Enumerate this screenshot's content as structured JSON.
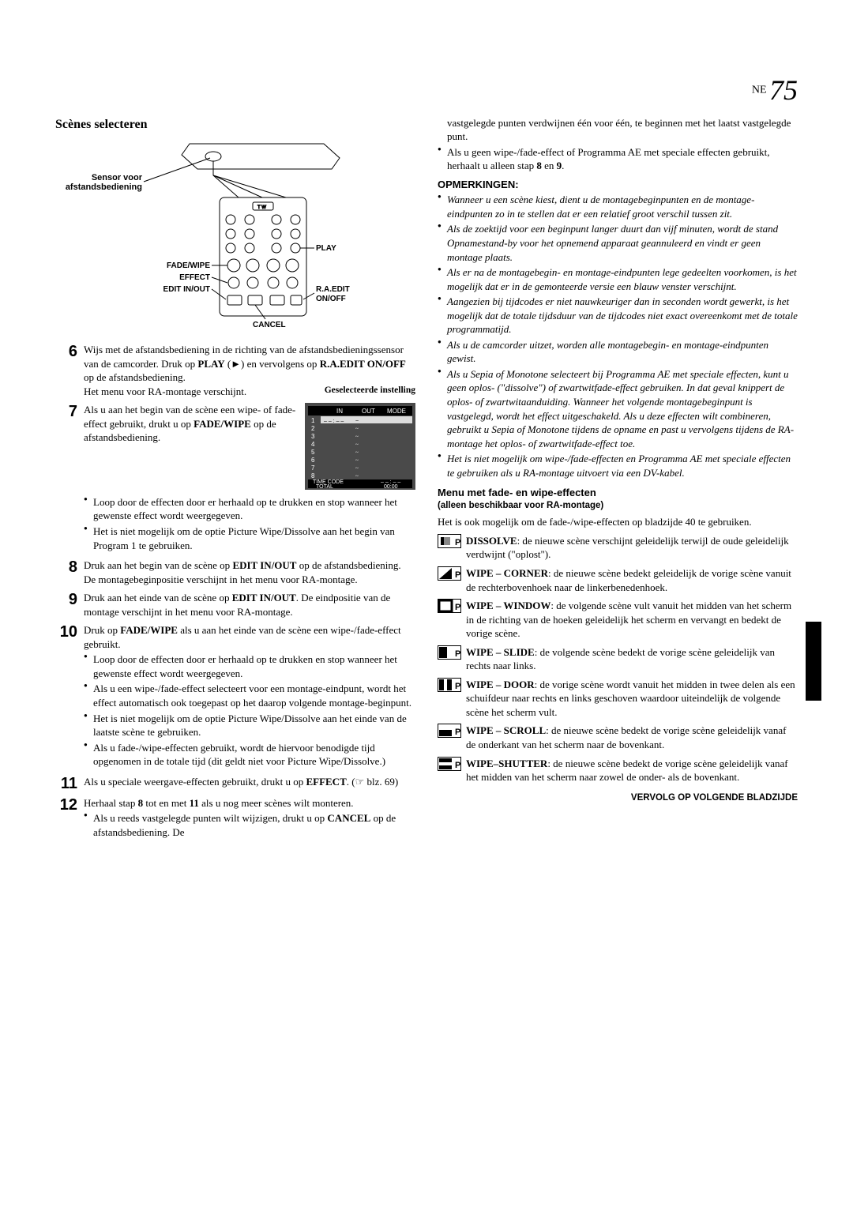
{
  "page": {
    "prefix": "NE",
    "number": "75"
  },
  "left": {
    "section_title": "Scènes selecteren",
    "diagram_labels": {
      "sensor": "Sensor voor",
      "afstand": "afstandsbediening",
      "fade_wipe": "FADE/WIPE",
      "effect": "EFFECT",
      "edit_inout": "EDIT IN/OUT",
      "play": "PLAY",
      "raedit": "R.A.EDIT",
      "onoff": "ON/OFF",
      "cancel": "CANCEL"
    },
    "step6": {
      "p1": "Wijs met de afstandsbediening in de richting van de afstandsbedieningssensor van de camcorder. Druk op ",
      "b1": "PLAY",
      "p2": " (►) en vervolgens op ",
      "b2": "R.A.EDIT ON/OFF",
      "p3": " op de afstandsbediening.",
      "p4": "Het menu voor RA-montage verschijnt."
    },
    "gesel_caption": "Geselecteerde instelling",
    "screen": {
      "in": "IN",
      "out": "OUT",
      "mode": "MODE",
      "time_code": "TIME CODE",
      "tc_dashes": "– – : – –",
      "total": "TOTAL",
      "total_val": "00:00"
    },
    "step7": {
      "p1": "Als u aan het begin van de scène een wipe- of fade-effect gebruikt, drukt u op ",
      "b1": "FADE/WIPE",
      "p2": " op de afstandsbediening.",
      "bul1": "Loop door de effecten door er herhaald op te drukken en stop wanneer het gewenste effect wordt weergegeven.",
      "bul2": "Het is niet mogelijk om de optie Picture Wipe/Dissolve aan het begin van Program 1 te gebruiken."
    },
    "step8": {
      "p1": "Druk aan het begin van de scène op ",
      "b1": "EDIT IN/OUT",
      "p2": " op de afstandsbediening. De montagebeginpositie verschijnt in het menu voor RA-montage."
    },
    "step9": {
      "p1": "Druk aan het einde van de scène op ",
      "b1": "EDIT IN/OUT",
      "p2": ". De eindpositie van de montage verschijnt in het menu voor RA-montage."
    },
    "step10": {
      "p1": "Druk op ",
      "b1": "FADE/WIPE",
      "p2": " als u aan het einde van de scène een wipe-/fade-effect gebruikt.",
      "bul1": "Loop door de effecten door er herhaald op te drukken en stop wanneer het gewenste effect wordt weergegeven.",
      "bul2": "Als u een wipe-/fade-effect selecteert voor een montage-eindpunt, wordt het effect automatisch ook toegepast op het daarop volgende montage-beginpunt.",
      "bul3": "Het is niet mogelijk om de optie Picture Wipe/Dissolve aan het einde van de laatste scène te gebruiken.",
      "bul4": "Als u fade-/wipe-effecten gebruikt, wordt de hiervoor benodigde tijd opgenomen in de totale tijd (dit geldt niet voor Picture Wipe/Dissolve.)"
    },
    "step11": {
      "p1": "Als u speciale weergave-effecten gebruikt, drukt u op ",
      "b1": "EFFECT",
      "p2": ". (☞ blz. 69)"
    },
    "step12": {
      "p1": "Herhaal stap ",
      "b1": "8",
      "p2": " tot en met ",
      "b2": "11",
      "p3": " als u nog meer scènes wilt monteren.",
      "bul1_a": "Als u reeds vastgelegde punten wilt wijzigen, drukt u op ",
      "bul1_b": "CANCEL",
      "bul1_c": " op de afstandsbediening. De"
    }
  },
  "right": {
    "top_cont": "vastgelegde punten verdwijnen één voor één, te beginnen met het laatst vastgelegde punt.",
    "top_bul_a": "Als u geen wipe-/fade-effect of Programma AE met speciale effecten gebruikt, herhaalt u alleen stap ",
    "top_b1": "8",
    "top_bul_b": " en ",
    "top_b2": "9",
    "top_bul_c": ".",
    "opmerkingen": "OPMERKINGEN:",
    "notes": [
      "Wanneer u een scène kiest, dient u de montagebeginpunten en de montage-eindpunten zo in te stellen dat er een relatief groot verschil tussen zit.",
      "Als de zoektijd voor een beginpunt langer duurt dan vijf minuten, wordt de stand Opnamestand-by voor het opnemend apparaat geannuleerd en vindt er geen montage plaats.",
      "Als er na de montagebegin- en montage-eindpunten lege gedeelten voorkomen, is het mogelijk dat er in de gemonteerde versie een blauw venster verschijnt.",
      "Aangezien bij tijdcodes er niet nauwkeuriger dan in seconden wordt gewerkt, is het mogelijk dat de totale tijdsduur van de tijdcodes niet exact overeenkomt met de totale programmatijd.",
      "Als u de camcorder uitzet, worden alle montagebegin- en montage-eindpunten gewist.",
      "Als u Sepia of Monotone selecteert bij Programma AE met speciale effecten, kunt u geen oplos- (\"dissolve\") of zwartwitfade-effect gebruiken. In dat geval knippert de oplos- of zwartwitaanduiding. Wanneer het volgende montagebeginpunt is vastgelegd, wordt het effect uitgeschakeld. Als u deze effecten wilt combineren, gebruikt u Sepia of Monotone tijdens de opname en past u vervolgens tijdens de RA-montage het oplos- of zwartwitfade-effect toe.",
      "Het is niet mogelijk om wipe-/fade-effecten en Programma AE met speciale effecten te gebruiken als u RA-montage uitvoert via een DV-kabel."
    ],
    "menu_title": "Menu met fade- en wipe-effecten",
    "menu_sub": "(alleen beschikbaar voor RA-montage)",
    "menu_intro": "Het is ook mogelijk om de fade-/wipe-effecten op bladzijde 40 te gebruiken.",
    "effects": [
      {
        "name": "DISSOLVE",
        "text": ": de nieuwe scène verschijnt geleidelijk terwijl de oude geleidelijk verdwijnt (\"oplost\")."
      },
      {
        "name": "WIPE – CORNER",
        "text": ": de nieuwe scène bedekt geleidelijk de vorige scène vanuit de rechterbovenhoek naar de linkerbenedenhoek."
      },
      {
        "name": "WIPE – WINDOW",
        "text": ": de volgende scène vult vanuit het midden van het scherm in de richting van de hoeken geleidelijk het scherm en vervangt en bedekt de vorige scène."
      },
      {
        "name": "WIPE – SLIDE",
        "text": ": de volgende scène bedekt de vorige scène geleidelijk van rechts naar links."
      },
      {
        "name": "WIPE – DOOR",
        "text": ": de vorige scène wordt vanuit het midden in twee delen als een schuifdeur naar rechts en links geschoven waardoor uiteindelijk de volgende scène het scherm vult."
      },
      {
        "name": "WIPE – SCROLL",
        "text": ": de nieuwe scène bedekt de vorige scène geleidelijk vanaf de onderkant van het scherm naar de bovenkant."
      },
      {
        "name": "WIPE–SHUTTER",
        "text": ": de nieuwe scène bedekt de vorige scène geleidelijk vanaf het midden van het scherm naar zowel de onder- als de bovenkant."
      }
    ],
    "vervolg": "VERVOLG OP VOLGENDE BLADZIJDE"
  }
}
